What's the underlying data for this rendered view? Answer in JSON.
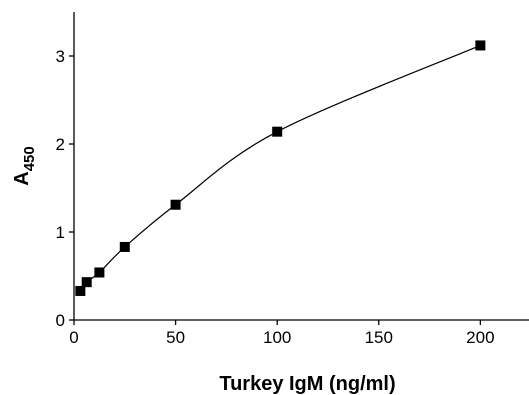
{
  "chart_data": {
    "type": "scatter",
    "title": "",
    "xlabel": "Turkey IgM (ng/ml)",
    "ylabel_main": "A",
    "ylabel_sub": "450",
    "xlim": [
      0,
      220
    ],
    "ylim": [
      0,
      3.5
    ],
    "x_ticks": [
      0,
      50,
      100,
      150,
      200
    ],
    "y_ticks": [
      0,
      1,
      2,
      3
    ],
    "x_tick_labels": [
      "0",
      "50",
      "100",
      "150",
      "200"
    ],
    "y_tick_labels": [
      "0",
      "1",
      "2",
      "3"
    ],
    "grid": false,
    "marker": "square",
    "points": [
      {
        "x": 3.125,
        "y": 0.33
      },
      {
        "x": 6.25,
        "y": 0.43
      },
      {
        "x": 12.5,
        "y": 0.54
      },
      {
        "x": 25,
        "y": 0.83
      },
      {
        "x": 50,
        "y": 1.31
      },
      {
        "x": 100,
        "y": 2.14
      },
      {
        "x": 200,
        "y": 3.12
      }
    ],
    "fit_curve": "smooth"
  }
}
